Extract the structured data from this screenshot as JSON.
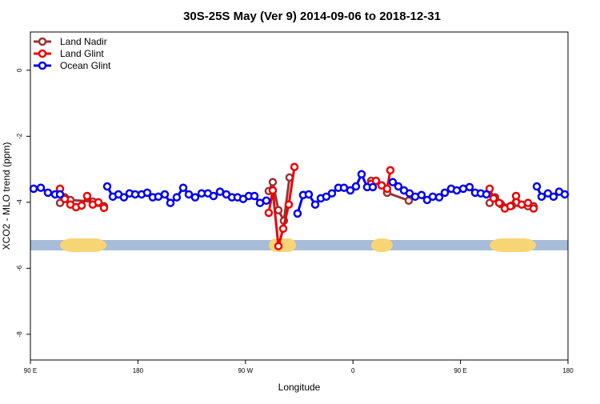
{
  "chart_data": {
    "type": "line",
    "title": "30S-25S May (Ver 9)   2014-09-06 to 2018-12-31",
    "x_label": "Longitude",
    "y_label": "XCO2 - MLO trend (ppm)",
    "xlim": [
      90,
      540
    ],
    "ylim": [
      -8.78,
      1.16
    ],
    "xticks": [
      {
        "value": 90,
        "label": "90 E"
      },
      180,
      {
        "value": 270,
        "label": "90 W"
      },
      {
        "value": 360,
        "label": "0"
      },
      {
        "value": 450,
        "label": "90 E"
      },
      {
        "value": 540,
        "label": "180"
      }
    ],
    "yticks": [
      0,
      -2,
      -4,
      -6,
      -8
    ],
    "legend": "top-left",
    "series": [
      {
        "name": "Land Nadir",
        "color": "#993333",
        "x": [
          114.8,
          118.8,
          123.5,
          142.2,
          146.9,
          151.6,
          null,
          289.5,
          292.9,
          297.6,
          302.2,
          306.9,
          null,
          375.2,
          379.3,
          384.0,
          388.6,
          406.7,
          null,
          474.4,
          479.0,
          483.7,
          493.1,
          506.5,
          511.2
        ],
        "values": [
          -4.02,
          -3.85,
          -3.93,
          -3.98,
          -4.02,
          -4.12,
          null,
          -3.66,
          -3.39,
          -4.24,
          -4.56,
          -3.25,
          null,
          -3.35,
          -3.35,
          -3.49,
          -3.71,
          -3.95,
          null,
          -4.02,
          -3.85,
          -4.05,
          -4.1,
          -4.12,
          -4.12
        ]
      },
      {
        "name": "Land Glint",
        "color": "#ee0000",
        "x": [
          114.8,
          118.8,
          123.5,
          128.2,
          132.9,
          137.5,
          142.2,
          146.9,
          151.6,
          null,
          289.5,
          292.9,
          297.6,
          301.6,
          306.3,
          311.0,
          null,
          375.2,
          379.3,
          384.0,
          388.6,
          391.3,
          null,
          474.4,
          477.7,
          482.4,
          487.1,
          491.8,
          496.5,
          501.2,
          506.5,
          511.2
        ],
        "values": [
          -3.59,
          -3.9,
          -4.07,
          -4.15,
          -4.1,
          -3.81,
          -4.07,
          -4.0,
          -4.17,
          null,
          -4.32,
          -3.64,
          -5.33,
          -4.8,
          -4.07,
          -2.93,
          null,
          -3.44,
          -3.35,
          -3.49,
          -3.59,
          -3.03,
          null,
          -3.59,
          -3.88,
          -4.02,
          -4.19,
          -4.12,
          -3.81,
          -4.07,
          -4.02,
          -4.19
        ]
      },
      {
        "name": "Ocean Glint",
        "color": "#0000ee",
        "x": [
          92.7,
          98.7,
          104.7,
          110.7,
          114.8,
          null,
          154.3,
          159.0,
          163.7,
          168.3,
          173.0,
          177.7,
          183.1,
          187.8,
          192.4,
          197.1,
          202.5,
          207.2,
          212.5,
          217.9,
          222.6,
          227.9,
          233.3,
          238.6,
          243.3,
          248.7,
          254.0,
          258.7,
          263.4,
          268.1,
          272.8,
          277.5,
          282.2,
          287.5,
          null,
          313.6,
          318.3,
          323.0,
          328.4,
          333.1,
          337.7,
          342.4,
          347.8,
          352.5,
          357.8,
          362.5,
          367.2,
          371.9,
          376.6,
          null,
          393.3,
          398.0,
          402.7,
          407.4,
          412.1,
          417.4,
          422.1,
          426.8,
          432.2,
          436.9,
          442.2,
          446.9,
          452.3,
          457.6,
          462.3,
          467.0,
          471.7,
          null,
          513.9,
          517.9,
          523.2,
          527.9,
          532.6,
          537.3
        ],
        "values": [
          -3.59,
          -3.56,
          -3.71,
          -3.76,
          -3.76,
          null,
          -3.52,
          -3.83,
          -3.76,
          -3.85,
          -3.73,
          -3.76,
          -3.76,
          -3.71,
          -3.85,
          -3.83,
          -3.76,
          -4.02,
          -3.85,
          -3.56,
          -3.76,
          -3.85,
          -3.73,
          -3.73,
          -3.81,
          -3.68,
          -3.76,
          -3.85,
          -3.85,
          -3.9,
          -3.81,
          -3.81,
          -4.02,
          -3.95,
          null,
          -4.34,
          -3.78,
          -3.76,
          -4.07,
          -3.88,
          -3.83,
          -3.73,
          -3.56,
          -3.56,
          -3.64,
          -3.52,
          -3.15,
          -3.54,
          -3.54,
          null,
          -3.39,
          -3.52,
          -3.64,
          -3.73,
          -3.83,
          -3.78,
          -3.93,
          -3.83,
          -3.85,
          -3.71,
          -3.59,
          -3.64,
          -3.59,
          -3.54,
          -3.71,
          -3.73,
          -3.76,
          null,
          -3.52,
          -3.83,
          -3.73,
          -3.83,
          -3.68,
          -3.76
        ]
      }
    ]
  }
}
